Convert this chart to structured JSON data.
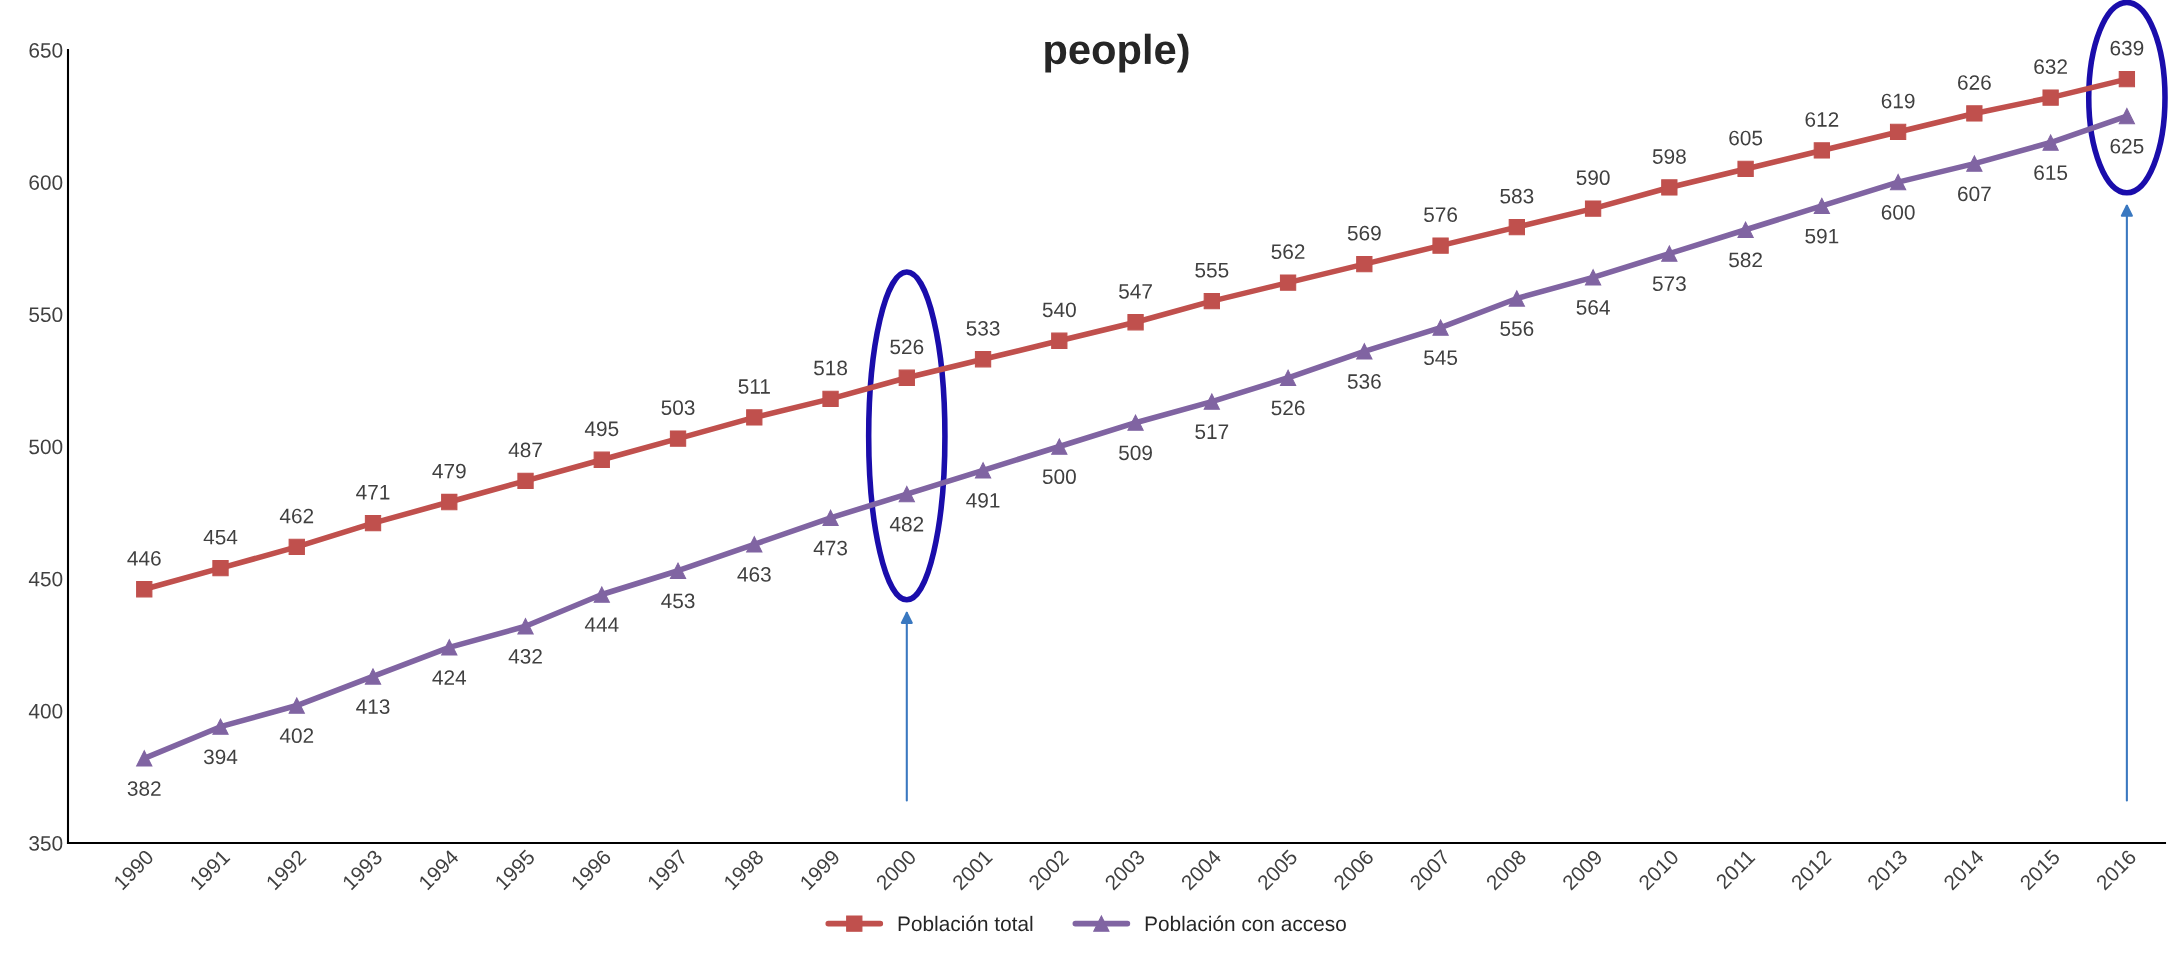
{
  "chart_data": {
    "type": "line",
    "title": "people)",
    "categories": [
      "1990",
      "1991",
      "1992",
      "1993",
      "1994",
      "1995",
      "1996",
      "1997",
      "1998",
      "1999",
      "2000",
      "2001",
      "2002",
      "2003",
      "2004",
      "2005",
      "2006",
      "2007",
      "2008",
      "2009",
      "2010",
      "2011",
      "2012",
      "2013",
      "2014",
      "2015",
      "2016"
    ],
    "series": [
      {
        "name": "Población total",
        "color": "#c0504d",
        "marker": "square",
        "values": [
          446,
          454,
          462,
          471,
          479,
          487,
          495,
          503,
          511,
          518,
          526,
          533,
          540,
          547,
          555,
          562,
          569,
          576,
          583,
          590,
          598,
          605,
          612,
          619,
          626,
          632,
          639
        ]
      },
      {
        "name": "Población con acceso",
        "color": "#8064a2",
        "marker": "triangle",
        "values": [
          382,
          394,
          402,
          413,
          424,
          432,
          444,
          453,
          463,
          473,
          482,
          491,
          500,
          509,
          517,
          526,
          536,
          545,
          556,
          564,
          573,
          582,
          591,
          600,
          607,
          615,
          625
        ]
      }
    ],
    "ylim": [
      350,
      650
    ],
    "yticks": [
      350,
      400,
      450,
      500,
      550,
      600,
      650
    ],
    "grid": false,
    "legend": "bottom",
    "data_labels": true,
    "line_style": "solid"
  }
}
